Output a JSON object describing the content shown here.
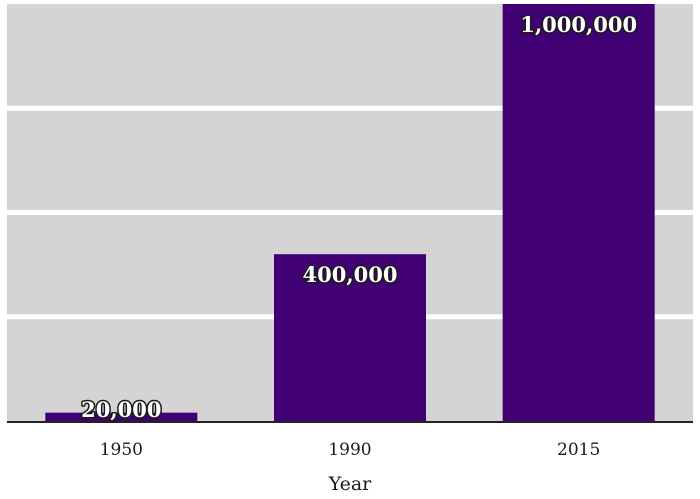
{
  "chart_data": {
    "type": "bar",
    "categories": [
      "1950",
      "1990",
      "2015"
    ],
    "values": [
      20000,
      400000,
      1000000
    ],
    "value_labels": [
      "20,000",
      "400,000",
      "1,000,000"
    ],
    "title": "",
    "xlabel": "Year",
    "ylabel": "",
    "ylim": [
      0,
      1000000
    ],
    "gridlines": [
      250000,
      500000,
      750000
    ],
    "grid": true,
    "legend": "none",
    "colors": {
      "bar": "#420075",
      "panel_background": "#d4d4d4",
      "gridline": "#ffffff",
      "axis_line": "#222222"
    }
  }
}
